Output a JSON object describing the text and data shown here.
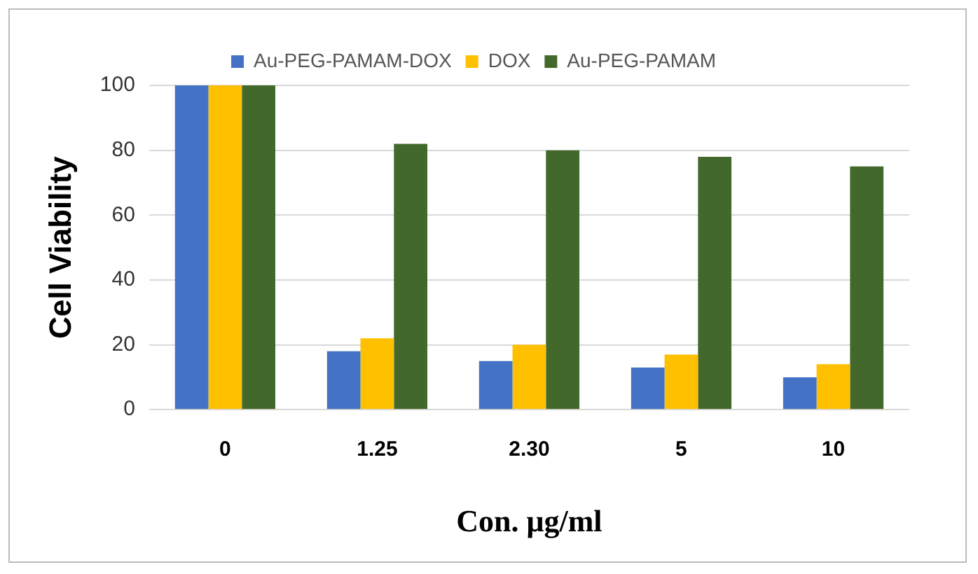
{
  "chart_data": {
    "type": "bar",
    "xlabel": "Con. μg/ml",
    "ylabel": "Cell Viability",
    "categories": [
      "0",
      "1.25",
      "2.30",
      "5",
      "10"
    ],
    "series": [
      {
        "name": "Au-PEG-PAMAM-DOX",
        "color": "#4472c4",
        "values": [
          100,
          18,
          15,
          13,
          10
        ]
      },
      {
        "name": "DOX",
        "color": "#ffc000",
        "values": [
          100,
          22,
          20,
          17,
          14
        ]
      },
      {
        "name": "Au-PEG-PAMAM",
        "color": "#43682b",
        "values": [
          100,
          82,
          80,
          78,
          75
        ]
      }
    ],
    "ylim": [
      0,
      100
    ],
    "yticks": [
      0,
      20,
      40,
      60,
      80,
      100
    ],
    "grid": "y",
    "legend": "top"
  }
}
